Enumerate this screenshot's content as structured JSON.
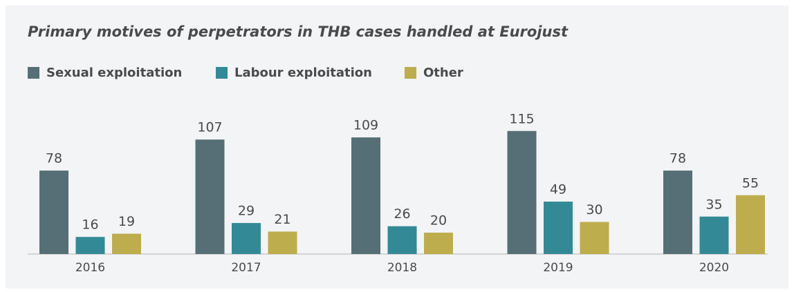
{
  "chart_data": {
    "type": "bar",
    "title": "Primary motives of perpetrators in THB cases handled at Eurojust",
    "categories": [
      "2016",
      "2017",
      "2018",
      "2019",
      "2020"
    ],
    "series": [
      {
        "name": "Sexual exploitation",
        "color": "#566f76",
        "values": [
          78,
          107,
          109,
          115,
          78
        ]
      },
      {
        "name": "Labour exploitation",
        "color": "#338a96",
        "values": [
          16,
          29,
          26,
          49,
          35
        ]
      },
      {
        "name": "Other",
        "color": "#bead4d",
        "values": [
          19,
          21,
          20,
          30,
          55
        ]
      }
    ],
    "legend": "top-left"
  }
}
